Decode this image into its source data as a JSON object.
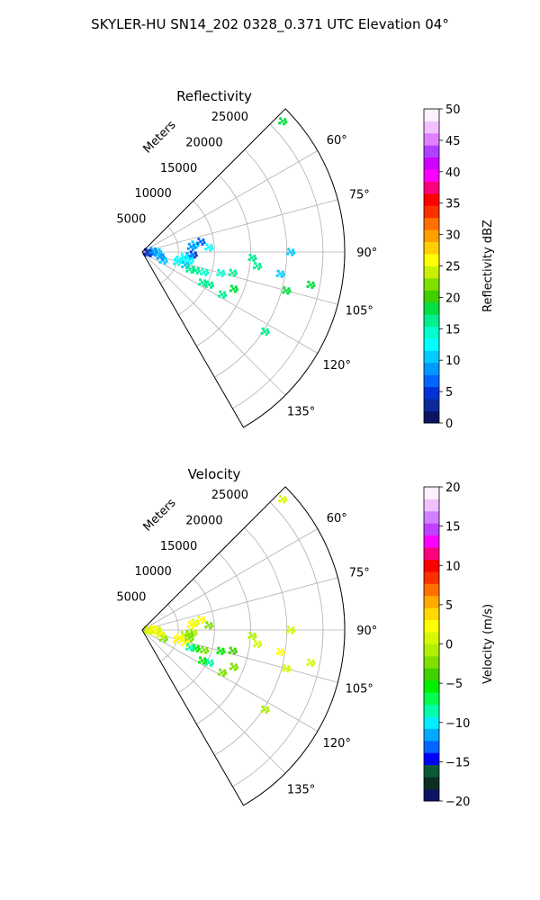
{
  "suptitle": "SKYLER-HU  SN14_202  0328_0.371 UTC Elevation 04°",
  "chart_data": [
    {
      "type": "heatmap",
      "projection": "polar-sector",
      "title": "Reflectivity",
      "range_label": "Meters",
      "azimuth_range_deg": [
        45,
        150
      ],
      "range_max_m": 28000,
      "range_ticks": [
        "5000",
        "10000",
        "15000",
        "20000",
        "25000"
      ],
      "range_tick_values": [
        5000,
        10000,
        15000,
        20000,
        25000
      ],
      "azimuth_ticks": [
        "60°",
        "75°",
        "90°",
        "105°",
        "120°",
        "135°"
      ],
      "azimuth_tick_values": [
        60,
        75,
        90,
        105,
        120,
        135
      ],
      "grid": true,
      "colorbar": {
        "label": "Reflectivity dBZ",
        "min": 0,
        "max": 50,
        "ticks": [
          "0",
          "5",
          "10",
          "15",
          "20",
          "25",
          "30",
          "35",
          "40",
          "45",
          "50"
        ],
        "tick_values": [
          0,
          5,
          10,
          15,
          20,
          25,
          30,
          35,
          40,
          45,
          50
        ],
        "colors": [
          "#0b1460",
          "#0a2a9a",
          "#0033d6",
          "#0066ff",
          "#0099ff",
          "#00ccff",
          "#00ffff",
          "#00ffcc",
          "#00f090",
          "#00e040",
          "#40d000",
          "#80e000",
          "#c8f000",
          "#ffff00",
          "#ffd000",
          "#ffa000",
          "#ff7000",
          "#ff3000",
          "#ff0000",
          "#ff0080",
          "#ff00ff",
          "#d000ff",
          "#b040ff",
          "#e080ff",
          "#f0c0ff",
          "#fff0ff"
        ]
      },
      "echoes": [
        {
          "az": 47,
          "r": 26500,
          "v": 18
        },
        {
          "az": 82,
          "r": 7300,
          "v": 10
        },
        {
          "az": 84,
          "r": 6800,
          "v": 9
        },
        {
          "az": 86,
          "r": 9200,
          "v": 13
        },
        {
          "az": 80,
          "r": 8200,
          "v": 6
        },
        {
          "az": 93,
          "r": 7000,
          "v": 5
        },
        {
          "az": 95,
          "r": 6500,
          "v": 9
        },
        {
          "az": 97,
          "r": 5800,
          "v": 12
        },
        {
          "az": 100,
          "r": 6600,
          "v": 13
        },
        {
          "az": 102,
          "r": 5200,
          "v": 12
        },
        {
          "az": 106,
          "r": 5000,
          "v": 12
        },
        {
          "az": 107,
          "r": 6200,
          "v": 10
        },
        {
          "az": 109,
          "r": 7800,
          "v": 16
        },
        {
          "az": 110,
          "r": 7000,
          "v": 17
        },
        {
          "az": 108,
          "r": 9000,
          "v": 14
        },
        {
          "az": 105,
          "r": 11200,
          "v": 15
        },
        {
          "az": 103,
          "r": 12800,
          "v": 16
        },
        {
          "az": 117,
          "r": 9300,
          "v": 16
        },
        {
          "az": 116,
          "r": 10300,
          "v": 17
        },
        {
          "az": 118,
          "r": 12500,
          "v": 17
        },
        {
          "az": 112,
          "r": 13600,
          "v": 18
        },
        {
          "az": 97,
          "r": 16000,
          "v": 17
        },
        {
          "az": 93,
          "r": 15200,
          "v": 17
        },
        {
          "az": 105,
          "r": 20600,
          "v": 18
        },
        {
          "az": 101,
          "r": 23700,
          "v": 18
        },
        {
          "az": 123,
          "r": 20200,
          "v": 17
        },
        {
          "az": 99,
          "r": 19300,
          "v": 11
        },
        {
          "az": 90,
          "r": 20500,
          "v": 10
        },
        {
          "az": 112,
          "r": 3100,
          "v": 11
        },
        {
          "az": 104,
          "r": 2600,
          "v": 9
        },
        {
          "az": 96,
          "r": 2200,
          "v": 8
        },
        {
          "az": 92,
          "r": 700,
          "v": 3
        },
        {
          "az": 101,
          "r": 900,
          "v": 4
        },
        {
          "az": 88,
          "r": 2000,
          "v": 10
        },
        {
          "az": 85,
          "r": 1500,
          "v": 8
        }
      ]
    },
    {
      "type": "heatmap",
      "projection": "polar-sector",
      "title": "Velocity",
      "range_label": "Meters",
      "azimuth_range_deg": [
        45,
        150
      ],
      "range_max_m": 28000,
      "range_ticks": [
        "5000",
        "10000",
        "15000",
        "20000",
        "25000"
      ],
      "range_tick_values": [
        5000,
        10000,
        15000,
        20000,
        25000
      ],
      "azimuth_ticks": [
        "60°",
        "75°",
        "90°",
        "105°",
        "120°",
        "135°"
      ],
      "azimuth_tick_values": [
        60,
        75,
        90,
        105,
        120,
        135
      ],
      "grid": true,
      "colorbar": {
        "label": "Velocity (m/s)",
        "min": -20,
        "max": 20,
        "ticks": [
          "−20",
          "−15",
          "−10",
          "−5",
          "0",
          "5",
          "10",
          "15",
          "20"
        ],
        "tick_values": [
          -20,
          -15,
          -10,
          -5,
          0,
          5,
          10,
          15,
          20
        ],
        "colors": [
          "#0b1460",
          "#0a3020",
          "#0a5a3a",
          "#0000ff",
          "#0066ff",
          "#00aaff",
          "#00eeff",
          "#00ffaa",
          "#00ff50",
          "#00ee00",
          "#40d000",
          "#80e000",
          "#b0f000",
          "#d8f800",
          "#ffff00",
          "#ffd800",
          "#ffaa00",
          "#ff7000",
          "#ff3000",
          "#ff0000",
          "#ff0080",
          "#ff00ff",
          "#c040ff",
          "#d080ff",
          "#f0c0ff",
          "#fff0ff"
        ]
      },
      "echoes": [
        {
          "az": 47,
          "r": 26500,
          "v": 0
        },
        {
          "az": 82,
          "r": 7300,
          "v": 1
        },
        {
          "az": 84,
          "r": 6800,
          "v": 3
        },
        {
          "az": 86,
          "r": 9200,
          "v": -2
        },
        {
          "az": 80,
          "r": 8200,
          "v": 2
        },
        {
          "az": 93,
          "r": 7000,
          "v": -1
        },
        {
          "az": 95,
          "r": 6500,
          "v": -2
        },
        {
          "az": 97,
          "r": 5800,
          "v": -1
        },
        {
          "az": 100,
          "r": 6600,
          "v": -3
        },
        {
          "az": 102,
          "r": 5200,
          "v": 2
        },
        {
          "az": 106,
          "r": 5000,
          "v": 3
        },
        {
          "az": 107,
          "r": 6200,
          "v": 2
        },
        {
          "az": 109,
          "r": 7800,
          "v": -5
        },
        {
          "az": 110,
          "r": 7000,
          "v": -8
        },
        {
          "az": 108,
          "r": 9000,
          "v": -3
        },
        {
          "az": 105,
          "r": 11200,
          "v": -6
        },
        {
          "az": 103,
          "r": 12800,
          "v": -4
        },
        {
          "az": 117,
          "r": 9300,
          "v": -6
        },
        {
          "az": 116,
          "r": 10300,
          "v": -9
        },
        {
          "az": 118,
          "r": 12500,
          "v": -2
        },
        {
          "az": 112,
          "r": 13600,
          "v": -2
        },
        {
          "az": 97,
          "r": 16000,
          "v": 0
        },
        {
          "az": 93,
          "r": 15200,
          "v": -1
        },
        {
          "az": 105,
          "r": 20600,
          "v": 0
        },
        {
          "az": 101,
          "r": 23700,
          "v": 1
        },
        {
          "az": 123,
          "r": 20200,
          "v": -1
        },
        {
          "az": 99,
          "r": 19300,
          "v": 2
        },
        {
          "az": 90,
          "r": 20500,
          "v": 1
        },
        {
          "az": 112,
          "r": 3100,
          "v": -2
        },
        {
          "az": 104,
          "r": 2600,
          "v": 0
        },
        {
          "az": 96,
          "r": 2200,
          "v": 2
        },
        {
          "az": 92,
          "r": 700,
          "v": 0
        },
        {
          "az": 101,
          "r": 900,
          "v": 1
        },
        {
          "az": 88,
          "r": 2000,
          "v": 0
        },
        {
          "az": 85,
          "r": 1500,
          "v": 2
        }
      ]
    }
  ]
}
